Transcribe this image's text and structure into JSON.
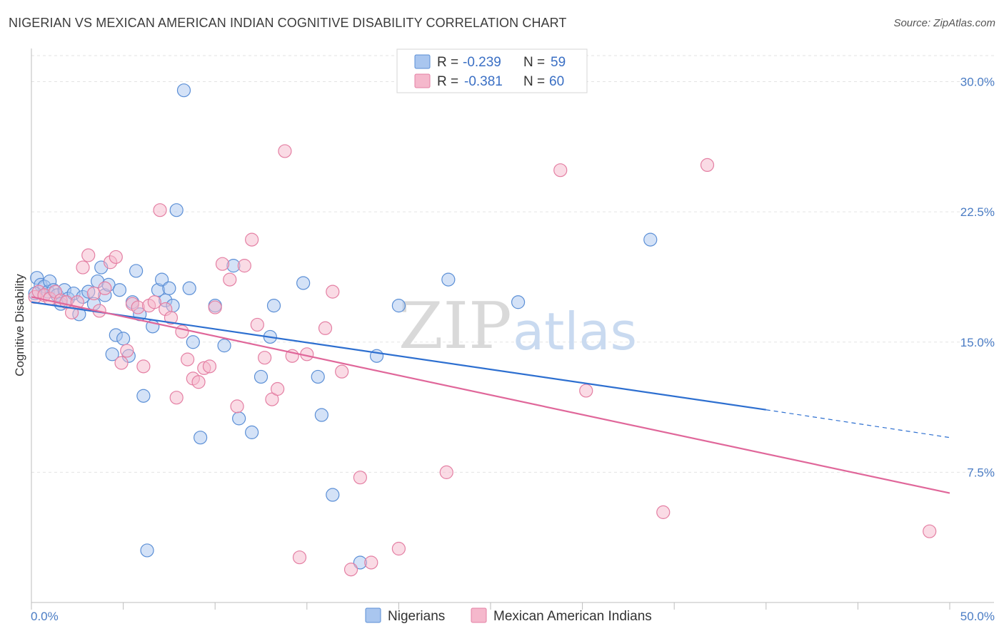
{
  "title": "NIGERIAN VS MEXICAN AMERICAN INDIAN COGNITIVE DISABILITY CORRELATION CHART",
  "source": "Source: ZipAtlas.com",
  "watermark": {
    "zip": "ZIP",
    "atlas": "atlas"
  },
  "chart_data": {
    "type": "scatter",
    "ylabel": "Cognitive Disability",
    "xlim": [
      0,
      50
    ],
    "ylim": [
      0,
      31.5
    ],
    "x_ticks": [
      "0.0%",
      "50.0%"
    ],
    "y_ticks": [
      {
        "value": 7.5,
        "label": "7.5%"
      },
      {
        "value": 15.0,
        "label": "15.0%"
      },
      {
        "value": 22.5,
        "label": "22.5%"
      },
      {
        "value": 30.0,
        "label": "30.0%"
      }
    ],
    "grid": true,
    "legend": {
      "placement": "top-center",
      "rows": [
        {
          "r_label": "R =",
          "r_value": "-0.239",
          "n_label": "N =",
          "n_value": "59"
        },
        {
          "r_label": "R =",
          "r_value": "-0.381",
          "n_label": "N =",
          "n_value": "60"
        }
      ]
    },
    "colors": {
      "blue_fill": "#a9c6ef",
      "blue_stroke": "#5b8fd6",
      "blue_line": "#2d6fd0",
      "pink_fill": "#f5b8cc",
      "pink_stroke": "#e47fa3",
      "pink_line": "#e0679a"
    },
    "series": [
      {
        "name": "Nigerians",
        "trend": {
          "x0": 0,
          "y0": 17.3,
          "x1": 40,
          "y1": 11.1,
          "dash_x_end": 50,
          "dash_y_end": 9.5
        },
        "points": [
          [
            0.3,
            18.7
          ],
          [
            0.5,
            18.3
          ],
          [
            0.7,
            18.2
          ],
          [
            0.9,
            17.9
          ],
          [
            1.0,
            18.5
          ],
          [
            1.2,
            18.0
          ],
          [
            1.4,
            17.7
          ],
          [
            1.6,
            17.2
          ],
          [
            1.8,
            18.0
          ],
          [
            2.0,
            17.5
          ],
          [
            2.3,
            17.8
          ],
          [
            2.6,
            16.6
          ],
          [
            2.8,
            17.6
          ],
          [
            3.1,
            17.9
          ],
          [
            3.4,
            17.2
          ],
          [
            3.6,
            18.5
          ],
          [
            3.8,
            19.3
          ],
          [
            4.0,
            17.7
          ],
          [
            4.2,
            18.3
          ],
          [
            4.4,
            14.3
          ],
          [
            4.6,
            15.4
          ],
          [
            4.8,
            18.0
          ],
          [
            5.0,
            15.2
          ],
          [
            5.3,
            14.2
          ],
          [
            5.5,
            17.3
          ],
          [
            5.7,
            19.1
          ],
          [
            5.9,
            16.6
          ],
          [
            6.1,
            11.9
          ],
          [
            6.3,
            3.0
          ],
          [
            6.6,
            15.9
          ],
          [
            6.9,
            18.0
          ],
          [
            7.1,
            18.6
          ],
          [
            7.3,
            17.4
          ],
          [
            7.5,
            18.1
          ],
          [
            7.7,
            17.1
          ],
          [
            7.9,
            22.6
          ],
          [
            8.3,
            29.5
          ],
          [
            8.6,
            18.1
          ],
          [
            8.8,
            15.0
          ],
          [
            9.2,
            9.5
          ],
          [
            10.0,
            17.1
          ],
          [
            10.5,
            14.8
          ],
          [
            11.0,
            19.4
          ],
          [
            11.3,
            10.6
          ],
          [
            12.0,
            9.8
          ],
          [
            12.5,
            13.0
          ],
          [
            13.0,
            15.3
          ],
          [
            13.2,
            17.1
          ],
          [
            14.8,
            18.4
          ],
          [
            15.6,
            13.0
          ],
          [
            15.8,
            10.8
          ],
          [
            16.4,
            6.2
          ],
          [
            17.9,
            2.3
          ],
          [
            18.8,
            14.2
          ],
          [
            20.0,
            17.1
          ],
          [
            22.7,
            18.6
          ],
          [
            26.5,
            17.3
          ],
          [
            33.7,
            20.9
          ],
          [
            0.2,
            17.8
          ]
        ]
      },
      {
        "name": "Mexican American Indians",
        "trend": {
          "x0": 0,
          "y0": 17.6,
          "x1": 50,
          "y1": 6.3
        },
        "points": [
          [
            0.2,
            17.6
          ],
          [
            0.4,
            17.9
          ],
          [
            0.7,
            17.7
          ],
          [
            1.0,
            17.5
          ],
          [
            1.3,
            17.9
          ],
          [
            1.6,
            17.4
          ],
          [
            1.9,
            17.3
          ],
          [
            2.2,
            16.7
          ],
          [
            2.5,
            17.3
          ],
          [
            2.8,
            19.3
          ],
          [
            3.1,
            20.0
          ],
          [
            3.4,
            17.8
          ],
          [
            3.7,
            16.8
          ],
          [
            4.0,
            18.1
          ],
          [
            4.3,
            19.6
          ],
          [
            4.6,
            19.9
          ],
          [
            4.9,
            13.8
          ],
          [
            5.2,
            14.5
          ],
          [
            5.5,
            17.2
          ],
          [
            5.8,
            17.0
          ],
          [
            6.1,
            13.6
          ],
          [
            6.4,
            17.1
          ],
          [
            6.7,
            17.3
          ],
          [
            7.0,
            22.6
          ],
          [
            7.3,
            16.9
          ],
          [
            7.6,
            16.4
          ],
          [
            7.9,
            11.8
          ],
          [
            8.2,
            15.6
          ],
          [
            8.5,
            14.0
          ],
          [
            8.8,
            12.9
          ],
          [
            9.1,
            12.7
          ],
          [
            9.4,
            13.5
          ],
          [
            9.7,
            13.6
          ],
          [
            10.0,
            17.0
          ],
          [
            10.4,
            19.5
          ],
          [
            10.8,
            18.6
          ],
          [
            11.2,
            11.3
          ],
          [
            11.6,
            19.4
          ],
          [
            12.0,
            20.9
          ],
          [
            12.3,
            16.0
          ],
          [
            12.7,
            14.1
          ],
          [
            13.1,
            11.7
          ],
          [
            13.4,
            12.3
          ],
          [
            13.8,
            26.0
          ],
          [
            14.2,
            14.2
          ],
          [
            14.6,
            2.6
          ],
          [
            15.0,
            14.3
          ],
          [
            16.0,
            15.8
          ],
          [
            16.4,
            17.9
          ],
          [
            16.9,
            13.3
          ],
          [
            17.4,
            1.9
          ],
          [
            17.9,
            7.2
          ],
          [
            18.5,
            2.3
          ],
          [
            20.0,
            3.1
          ],
          [
            22.6,
            7.5
          ],
          [
            28.8,
            24.9
          ],
          [
            30.2,
            12.2
          ],
          [
            34.4,
            5.2
          ],
          [
            36.8,
            25.2
          ],
          [
            48.9,
            4.1
          ]
        ]
      }
    ]
  }
}
